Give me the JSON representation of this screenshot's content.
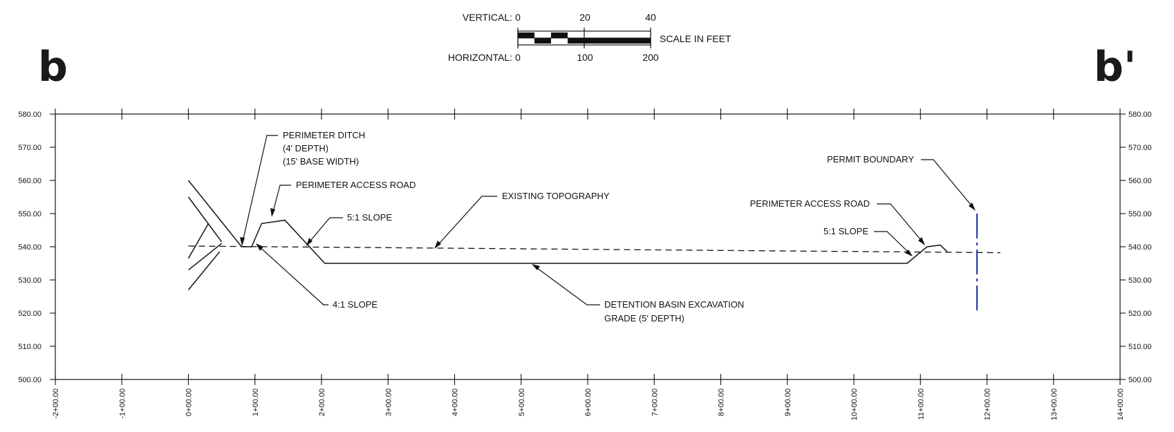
{
  "section": {
    "start_label": "b",
    "end_label": "b'"
  },
  "scale_bar": {
    "vertical_label": "VERTICAL:",
    "vertical_ticks": [
      "0",
      "20",
      "40"
    ],
    "horizontal_label": "HORIZONTAL:",
    "horizontal_ticks": [
      "0",
      "100",
      "200"
    ],
    "units_label": "SCALE IN FEET"
  },
  "axes": {
    "elevation_labels": [
      "580.00",
      "570.00",
      "560.00",
      "550.00",
      "540.00",
      "530.00",
      "520.00",
      "510.00",
      "500.00"
    ],
    "elevation_values": [
      580,
      570,
      560,
      550,
      540,
      530,
      520,
      510,
      500
    ],
    "station_labels": [
      "-2+00.00",
      "-1+00.00",
      "0+00.00",
      "1+00.00",
      "2+00.00",
      "3+00.00",
      "4+00.00",
      "5+00.00",
      "6+00.00",
      "7+00.00",
      "8+00.00",
      "9+00.00",
      "10+00.00",
      "11+00.00",
      "12+00.00",
      "13+00.00",
      "14+00.00"
    ],
    "station_values": [
      -200,
      -100,
      0,
      100,
      200,
      300,
      400,
      500,
      600,
      700,
      800,
      900,
      1000,
      1100,
      1200,
      1300,
      1400
    ],
    "x_range": [
      -200,
      1400
    ],
    "y_range": [
      500,
      580
    ]
  },
  "profiles": {
    "existing_topography": [
      [
        0,
        540.2
      ],
      [
        1220,
        538.2
      ]
    ],
    "design_grade": [
      [
        0,
        560
      ],
      [
        80,
        540
      ],
      [
        95,
        540
      ],
      [
        110,
        547
      ],
      [
        145,
        548
      ],
      [
        205,
        535
      ],
      [
        1080,
        535
      ],
      [
        1110,
        540
      ],
      [
        1130,
        540.5
      ],
      [
        1140,
        538.5
      ]
    ],
    "left_tie_ins": [
      [
        [
          0,
          555
        ],
        [
          50,
          541.5
        ]
      ],
      [
        [
          0,
          536.5
        ],
        [
          30,
          547
        ]
      ],
      [
        [
          0,
          533
        ],
        [
          50,
          541
        ]
      ],
      [
        [
          0,
          527
        ],
        [
          47,
          538.5
        ]
      ]
    ],
    "permit_boundary": {
      "station": 1185,
      "elev_top": 550,
      "elev_bottom": 520
    }
  },
  "annotations": [
    {
      "id": "perimeter-ditch",
      "lines": [
        "PERIMETER DITCH",
        "(4' DEPTH)",
        "(15' BASE WIDTH)"
      ]
    },
    {
      "id": "perimeter-access-road-left",
      "lines": [
        "PERIMETER ACCESS ROAD"
      ]
    },
    {
      "id": "slope-5-1-left",
      "lines": [
        "5:1 SLOPE"
      ]
    },
    {
      "id": "existing-topography",
      "lines": [
        "EXISTING TOPOGRAPHY"
      ]
    },
    {
      "id": "slope-4-1",
      "lines": [
        "4:1 SLOPE"
      ]
    },
    {
      "id": "detention-basin-grade",
      "lines": [
        "DETENTION BASIN EXCAVATION",
        "GRADE (5' DEPTH)"
      ]
    },
    {
      "id": "permit-boundary",
      "lines": [
        "PERMIT BOUNDARY"
      ]
    },
    {
      "id": "perimeter-access-road-right",
      "lines": [
        "PERIMETER ACCESS ROAD"
      ]
    },
    {
      "id": "slope-5-1-right",
      "lines": [
        "5:1 SLOPE"
      ]
    }
  ],
  "colors": {
    "line": "#111111",
    "boundary": "#1f2f9e"
  }
}
